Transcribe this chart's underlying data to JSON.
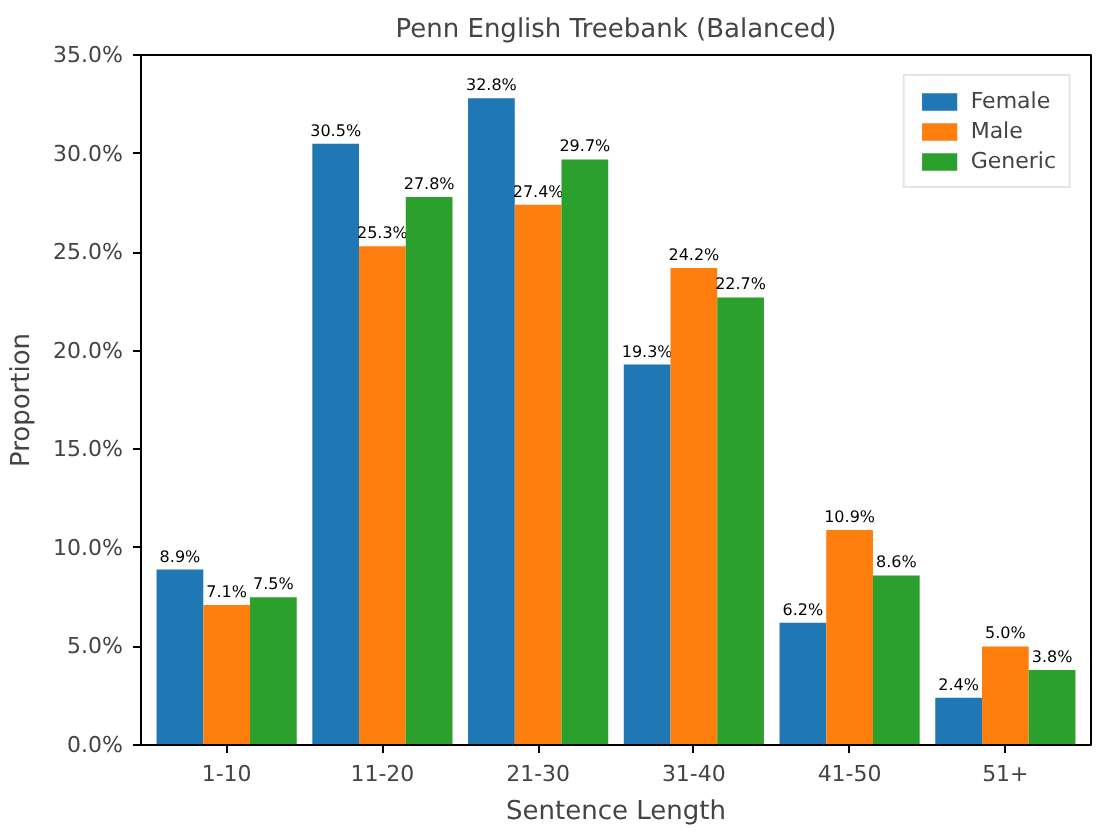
{
  "chart_data": {
    "type": "bar",
    "title": "Penn English Treebank (Balanced)",
    "xlabel": "Sentence Length",
    "ylabel": "Proportion",
    "categories": [
      "1-10",
      "11-20",
      "21-30",
      "31-40",
      "41-50",
      "51+"
    ],
    "series": [
      {
        "name": "Female",
        "color": "#1f77b4",
        "values": [
          8.9,
          30.5,
          32.8,
          19.3,
          6.2,
          2.4
        ],
        "value_labels": [
          "8.9%",
          "30.5%",
          "32.8%",
          "19.3%",
          "6.2%",
          "2.4%"
        ]
      },
      {
        "name": "Male",
        "color": "#ff7f0e",
        "values": [
          7.1,
          25.3,
          27.4,
          24.2,
          10.9,
          5.0
        ],
        "value_labels": [
          "7.1%",
          "25.3%",
          "27.4%",
          "24.2%",
          "10.9%",
          "5.0%"
        ]
      },
      {
        "name": "Generic",
        "color": "#2ca02c",
        "values": [
          7.5,
          27.8,
          29.7,
          22.7,
          8.6,
          3.8
        ],
        "value_labels": [
          "7.5%",
          "27.8%",
          "29.7%",
          "22.7%",
          "8.6%",
          "3.8%"
        ]
      }
    ],
    "ylim": [
      0,
      35
    ],
    "yticks": [
      {
        "value": 0,
        "label": "0.0%"
      },
      {
        "value": 5,
        "label": "5.0%"
      },
      {
        "value": 10,
        "label": "10.0%"
      },
      {
        "value": 15,
        "label": "15.0%"
      },
      {
        "value": 20,
        "label": "20.0%"
      },
      {
        "value": 25,
        "label": "25.0%"
      },
      {
        "value": 30,
        "label": "30.0%"
      },
      {
        "value": 35,
        "label": "35.0%"
      }
    ],
    "legend": "top right",
    "grid": false
  }
}
